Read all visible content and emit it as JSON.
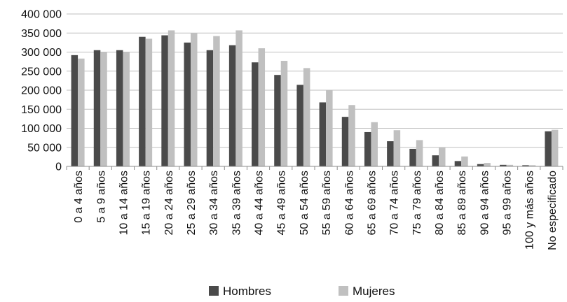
{
  "chart_data": {
    "type": "bar",
    "categories": [
      "0 a 4 años",
      "5 a 9 años",
      "10 a 14 años",
      "15 a 19 años",
      "20 a 24 años",
      "25 a 29 años",
      "30 a 34 años",
      "35 a 39 años",
      "40 a 44 años",
      "45 a 49 años",
      "50 a 54 años",
      "55 a 59 años",
      "60 a 64 años",
      "65 a 69 años",
      "70 a 74 años",
      "75 a 79 años",
      "80 a 84 años",
      "85 a 89 años",
      "90 a 94 años",
      "95 a 99 años",
      "100 y más años",
      "No especificado"
    ],
    "series": [
      {
        "name": "Hombres",
        "color": "#4a4a4a",
        "values": [
          292000,
          305000,
          305000,
          340000,
          344000,
          325000,
          305000,
          318000,
          273000,
          240000,
          214000,
          168000,
          130000,
          90000,
          66000,
          46000,
          29000,
          14000,
          6000,
          4000,
          3000,
          92000
        ]
      },
      {
        "name": "Mujeres",
        "color": "#c0c0c0",
        "values": [
          283000,
          300000,
          301000,
          335000,
          357000,
          350000,
          342000,
          357000,
          310000,
          277000,
          258000,
          200000,
          161000,
          116000,
          95000,
          69000,
          49000,
          26000,
          9000,
          4000,
          3000,
          96000
        ]
      }
    ],
    "y_ticks": [
      "0",
      "50 000",
      "100 000",
      "150 000",
      "200 000",
      "250 000",
      "300 000",
      "350 000",
      "400 000"
    ],
    "ylim": [
      0,
      400000
    ],
    "title": "",
    "xlabel": "",
    "ylabel": "",
    "grid": true,
    "legend": "bottom"
  }
}
